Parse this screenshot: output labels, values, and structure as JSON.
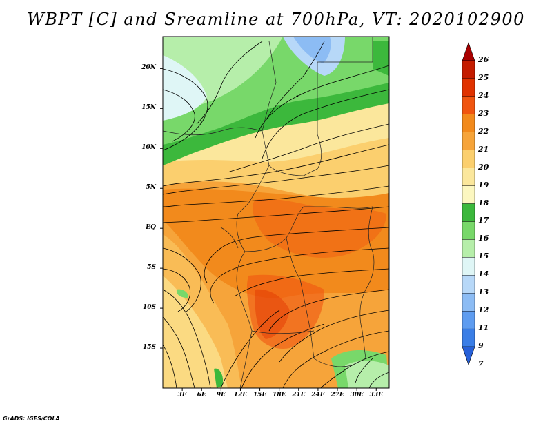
{
  "title": "WBPT [C] and Sreamline at 700hPa, VT: 2020102900",
  "map": {
    "variable": "Wet-bulb potential temperature",
    "units": "C",
    "level": "700hPa",
    "valid_time": "2020102900",
    "lat_range": [
      -20,
      24
    ],
    "lon_range": [
      0,
      35
    ],
    "lat_labels": [
      "20N",
      "15N",
      "10N",
      "5N",
      "EQ",
      "5S",
      "10S",
      "15S"
    ],
    "lat_values": [
      20,
      15,
      10,
      5,
      0,
      -5,
      -10,
      -15
    ],
    "lon_labels": [
      "3E",
      "6E",
      "9E",
      "12E",
      "15E",
      "18E",
      "21E",
      "24E",
      "27E",
      "30E",
      "33E"
    ],
    "lon_values": [
      3,
      6,
      9,
      12,
      15,
      18,
      21,
      24,
      27,
      30,
      33
    ]
  },
  "colorbar": {
    "labels": [
      "26",
      "25",
      "24",
      "23",
      "22",
      "21",
      "20",
      "19",
      "18",
      "17",
      "16",
      "15",
      "14",
      "13",
      "12",
      "11",
      "9",
      "7"
    ],
    "colors": [
      "#a80000",
      "#c41c00",
      "#e03200",
      "#f05510",
      "#f28a1c",
      "#f6a43a",
      "#fbcf6e",
      "#fbe79c",
      "#fcf7c0",
      "#3cb83c",
      "#78d86a",
      "#b6eeaa",
      "#dff6f6",
      "#b7d8f8",
      "#8cbcf4",
      "#5e9cf0",
      "#3a7ee6",
      "#2760d8"
    ]
  },
  "footer": "GrADS: IGES/COLA"
}
